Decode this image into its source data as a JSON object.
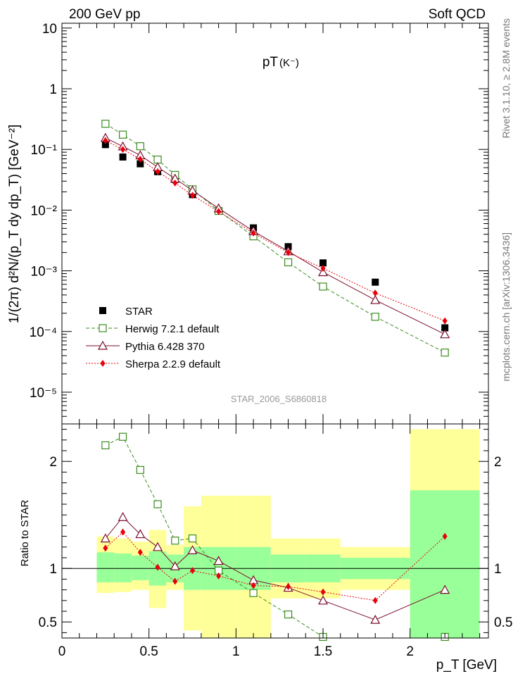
{
  "header": {
    "left": "200 GeV pp",
    "right": "Soft QCD"
  },
  "side_labels": {
    "rivet": "Rivet 3.1.10, ≥ 2.8M events",
    "mcplots": "mcplots.cern.ch [arXiv:1306.3436]"
  },
  "chart_data": [
    {
      "type": "scatter",
      "title": "pT(K⁻)",
      "title_main": "pT",
      "title_particle": "(K⁻)",
      "ylabel": "1/(2π) d²N/(p_T dy dp_T) [GeV⁻²]",
      "yscale": "log",
      "ylim": [
        3e-06,
        12
      ],
      "xlim": [
        0,
        2.45
      ],
      "y_ticks": [
        {
          "v": 10,
          "label": "10"
        },
        {
          "v": 1,
          "label": "1"
        },
        {
          "v": 0.1,
          "label": "10⁻¹"
        },
        {
          "v": 0.01,
          "label": "10⁻²"
        },
        {
          "v": 0.001,
          "label": "10⁻³"
        },
        {
          "v": 0.0001,
          "label": "10⁻⁴"
        },
        {
          "v": 1e-05,
          "label": "10⁻⁵"
        }
      ],
      "watermark": "STAR_2006_S6860818",
      "legend_position": "bottom-left",
      "x": [
        0.25,
        0.35,
        0.45,
        0.55,
        0.65,
        0.75,
        0.9,
        1.1,
        1.3,
        1.5,
        1.8,
        2.2
      ],
      "series": [
        {
          "name": "STAR",
          "color": "#000000",
          "marker": "square-filled",
          "line": "none",
          "values": [
            0.12,
            0.075,
            0.058,
            0.043,
            0.032,
            0.018,
            0.0098,
            0.0051,
            0.0025,
            0.00135,
            0.00065,
            0.000115
          ]
        },
        {
          "name": "Herwig 7.2.1 default",
          "color": "#3a8c1f",
          "marker": "square-open",
          "line": "dashed",
          "values": [
            0.265,
            0.175,
            0.113,
            0.068,
            0.038,
            0.022,
            0.0097,
            0.0037,
            0.00138,
            0.00055,
            0.000175,
            4.5e-05
          ]
        },
        {
          "name": "Pythia 6.428 370",
          "color": "#7a0f2e",
          "marker": "triangle-open",
          "line": "solid",
          "values": [
            0.155,
            0.112,
            0.08,
            0.051,
            0.033,
            0.021,
            0.0107,
            0.0045,
            0.0021,
            0.00095,
            0.00033,
            9e-05
          ]
        },
        {
          "name": "Sherpa 2.2.9 default",
          "color": "#e8000b",
          "marker": "diamond-filled",
          "line": "dotted",
          "values": [
            0.14,
            0.1,
            0.069,
            0.043,
            0.028,
            0.0175,
            0.0095,
            0.0042,
            0.002,
            0.0011,
            0.00043,
            0.00015
          ]
        }
      ]
    },
    {
      "type": "scatter",
      "ylabel": "Ratio to STAR",
      "xlabel": "p_T [GeV]",
      "ylim": [
        0.35,
        2.35
      ],
      "xlim": [
        0,
        2.45
      ],
      "x_ticks": [
        0,
        0.5,
        1,
        1.5,
        2
      ],
      "x_tick_labels": [
        "0",
        "0.5",
        "1",
        "1.5",
        "2"
      ],
      "y_ticks": [
        0.5,
        1,
        2
      ],
      "y_tick_labels": [
        "0.5",
        "1",
        "2"
      ],
      "bands": [
        {
          "x0": 0.2,
          "x1": 0.3,
          "inner": [
            0.87,
            1.15
          ],
          "outer": [
            0.77,
            1.3
          ]
        },
        {
          "x0": 0.3,
          "x1": 0.4,
          "inner": [
            0.87,
            1.14
          ],
          "outer": [
            0.78,
            1.28
          ]
        },
        {
          "x0": 0.4,
          "x1": 0.5,
          "inner": [
            0.89,
            1.12
          ],
          "outer": [
            0.8,
            1.25
          ]
        },
        {
          "x0": 0.5,
          "x1": 0.6,
          "inner": [
            0.84,
            1.16
          ],
          "outer": [
            0.63,
            1.36
          ]
        },
        {
          "x0": 0.6,
          "x1": 0.7,
          "inner": [
            0.87,
            1.13
          ],
          "outer": [
            0.8,
            1.22
          ]
        },
        {
          "x0": 0.7,
          "x1": 0.8,
          "inner": [
            0.8,
            1.2
          ],
          "outer": [
            0.42,
            1.58
          ]
        },
        {
          "x0": 0.8,
          "x1": 1.0,
          "inner": [
            0.8,
            1.2
          ],
          "outer": [
            0.33,
            1.68
          ]
        },
        {
          "x0": 1.0,
          "x1": 1.2,
          "inner": [
            0.8,
            1.2
          ],
          "outer": [
            0.33,
            1.68
          ]
        },
        {
          "x0": 1.2,
          "x1": 1.4,
          "inner": [
            0.87,
            1.13
          ],
          "outer": [
            0.72,
            1.28
          ]
        },
        {
          "x0": 1.4,
          "x1": 1.6,
          "inner": [
            0.87,
            1.13
          ],
          "outer": [
            0.72,
            1.28
          ]
        },
        {
          "x0": 1.6,
          "x1": 2.0,
          "inner": [
            0.9,
            1.1
          ],
          "outer": [
            0.8,
            1.2
          ]
        },
        {
          "x0": 2.0,
          "x1": 2.4,
          "inner": [
            0.35,
            1.73
          ],
          "outer": [
            0.35,
            2.3
          ]
        }
      ],
      "x": [
        0.25,
        0.35,
        0.45,
        0.55,
        0.65,
        0.75,
        0.9,
        1.1,
        1.3,
        1.5,
        1.8,
        2.2
      ],
      "series": [
        {
          "name": "Herwig 7.2.1 default",
          "color": "#3a8c1f",
          "marker": "square-open",
          "line": "dashed",
          "values": [
            2.15,
            2.23,
            1.92,
            1.6,
            1.26,
            1.28,
            0.98,
            0.77,
            0.57,
            0.36,
            null,
            0.36
          ]
        },
        {
          "name": "Pythia 6.428 370",
          "color": "#7a0f2e",
          "marker": "triangle-open",
          "line": "solid",
          "values": [
            1.28,
            1.48,
            1.32,
            1.2,
            1.02,
            1.17,
            1.07,
            0.89,
            0.82,
            0.7,
            0.52,
            0.8
          ]
        },
        {
          "name": "Sherpa 2.2.9 default",
          "color": "#e8000b",
          "marker": "diamond-filled",
          "line": "dotted",
          "values": [
            1.19,
            1.34,
            1.15,
            1.01,
            0.88,
            0.98,
            0.93,
            0.84,
            0.83,
            0.78,
            0.7,
            1.3
          ]
        }
      ]
    }
  ]
}
